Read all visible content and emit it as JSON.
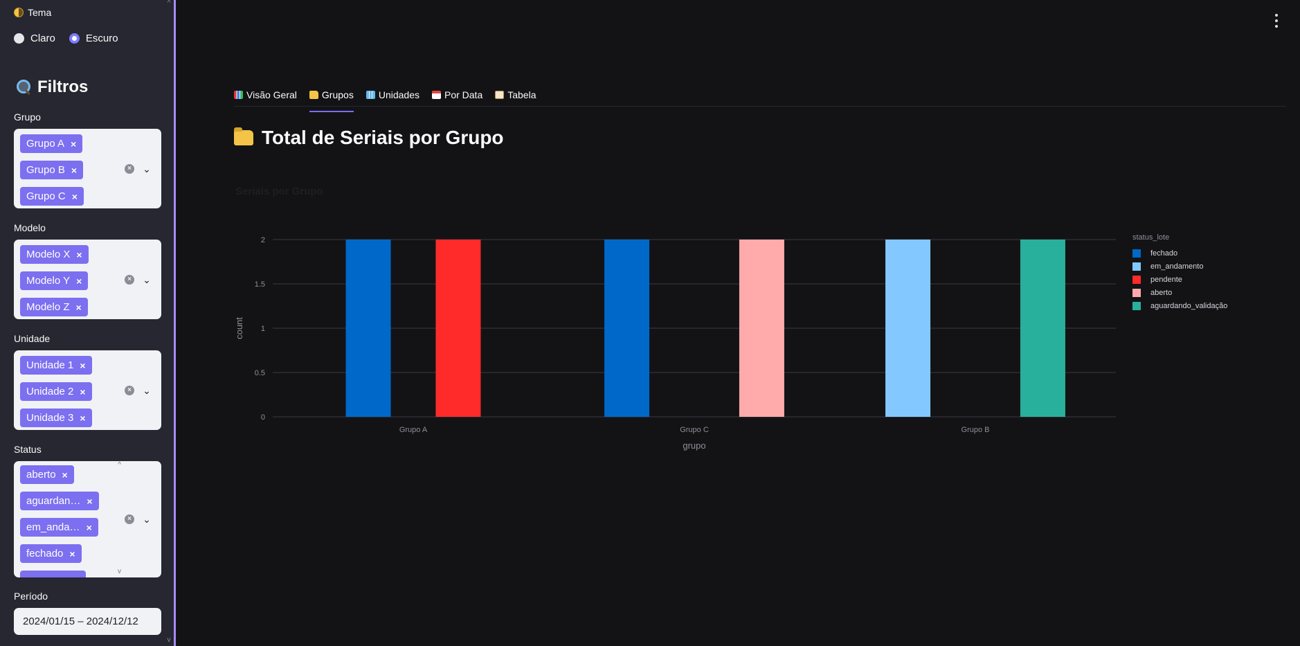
{
  "sidebar": {
    "theme_label": "Tema",
    "theme_options": [
      "Claro",
      "Escuro"
    ],
    "theme_selected": "Escuro",
    "filters_title": "Filtros",
    "grupo": {
      "label": "Grupo",
      "chips": [
        "Grupo A",
        "Grupo B",
        "Grupo C"
      ]
    },
    "modelo": {
      "label": "Modelo",
      "chips": [
        "Modelo X",
        "Modelo Y",
        "Modelo Z"
      ]
    },
    "unidade": {
      "label": "Unidade",
      "chips": [
        "Unidade 1",
        "Unidade 2",
        "Unidade 3"
      ]
    },
    "status": {
      "label": "Status",
      "chips": [
        "aberto",
        "aguardan…",
        "em_anda…",
        "fechado"
      ]
    },
    "periodo": {
      "label": "Período",
      "value": "2024/01/15 – 2024/12/12"
    }
  },
  "tabs": [
    {
      "label": "Visão Geral",
      "icon": "bar-chart-icon"
    },
    {
      "label": "Grupos",
      "icon": "folder-icon"
    },
    {
      "label": "Unidades",
      "icon": "building-icon"
    },
    {
      "label": "Por Data",
      "icon": "calendar-icon"
    },
    {
      "label": "Tabela",
      "icon": "clipboard-icon"
    }
  ],
  "active_tab": "Grupos",
  "page_title": "Total de Seriais por Grupo",
  "chart_data": {
    "type": "bar",
    "title": "Seriais por Grupo",
    "xlabel": "grupo",
    "ylabel": "count",
    "ylim": [
      0,
      2
    ],
    "yticks": [
      "0",
      "0.5",
      "1",
      "1.5",
      "2"
    ],
    "categories": [
      "Grupo A",
      "Grupo C",
      "Grupo B"
    ],
    "legend_title": "status_lote",
    "legend_position": "right",
    "grid": true,
    "series": [
      {
        "name": "fechado",
        "color": "#0068c9",
        "values": [
          2,
          2,
          0
        ]
      },
      {
        "name": "em_andamento",
        "color": "#83c9ff",
        "values": [
          0,
          0,
          2
        ]
      },
      {
        "name": "pendente",
        "color": "#ff2b2b",
        "values": [
          2,
          0,
          0
        ]
      },
      {
        "name": "aberto",
        "color": "#ffabab",
        "values": [
          0,
          2,
          0
        ]
      },
      {
        "name": "aguardando_validação",
        "color": "#29b09d",
        "values": [
          0,
          0,
          2
        ]
      }
    ]
  }
}
